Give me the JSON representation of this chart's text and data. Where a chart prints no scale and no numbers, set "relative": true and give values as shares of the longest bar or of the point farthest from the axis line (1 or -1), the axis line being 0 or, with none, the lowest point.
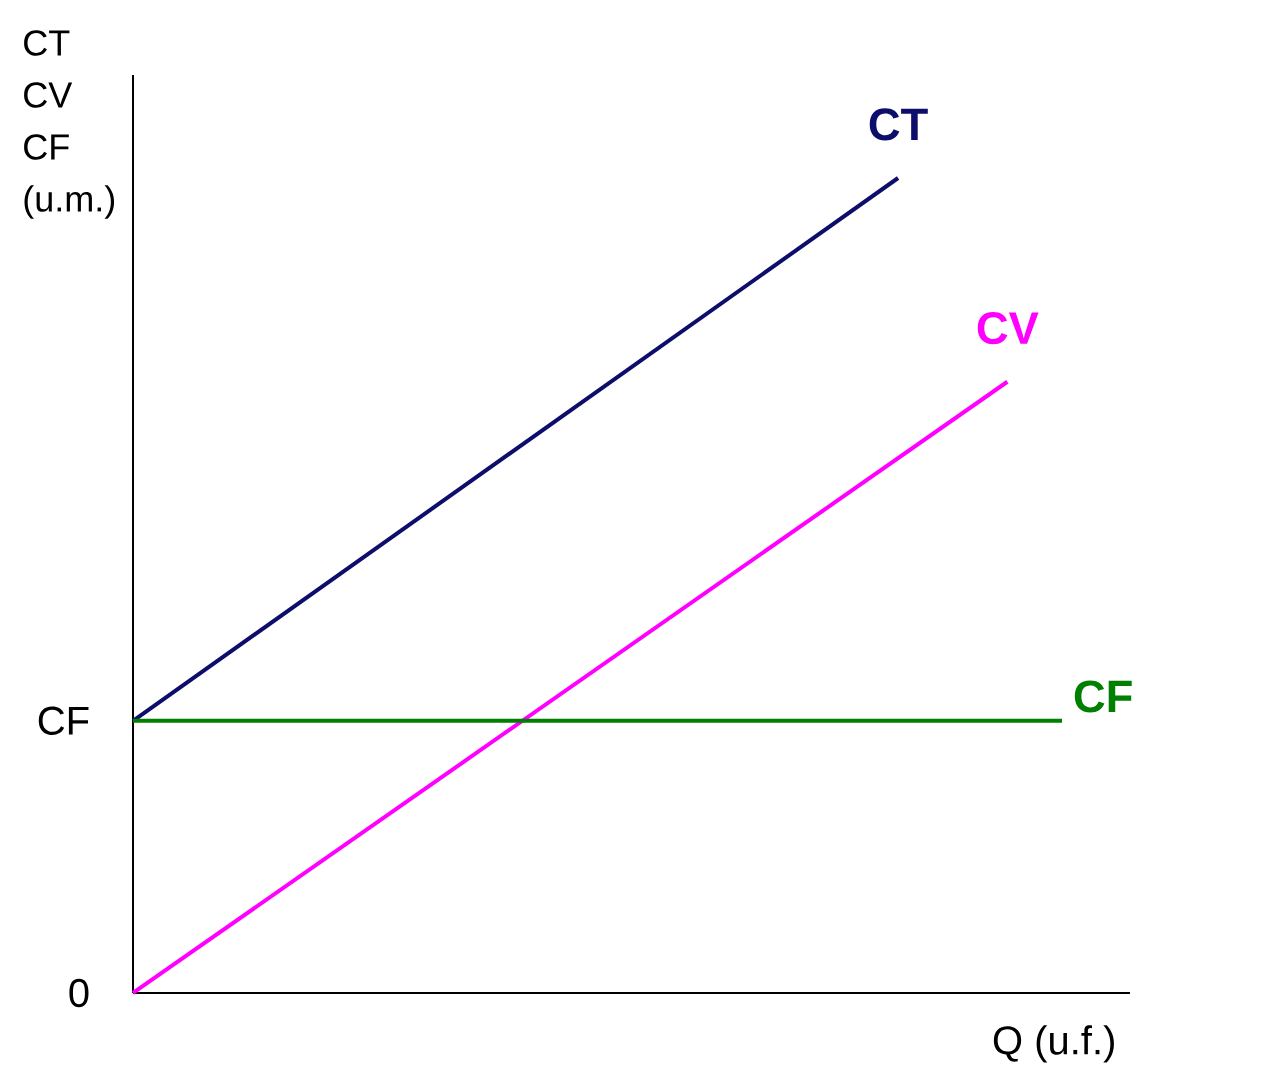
{
  "chart_data": {
    "type": "line",
    "relative": true,
    "ylabel": "CT CV CF (u.m.)",
    "xlabel": "Q (u.f.)",
    "categories": [
      null,
      null,
      null,
      null,
      null,
      null,
      null,
      null,
      null,
      null,
      null,
      null,
      null,
      null,
      null,
      null,
      null,
      null
    ],
    "series": [
      {
        "name": "CT",
        "color": "#0d0d6b",
        "values": [
          0.334,
          null,
          null,
          null,
          null,
          null,
          null,
          null,
          null,
          null,
          null,
          null,
          null,
          null,
          1.0,
          null,
          null,
          null
        ]
      },
      {
        "name": "CV",
        "color": "#ff00ff",
        "values": [
          0.0,
          null,
          null,
          null,
          null,
          null,
          null,
          null,
          null,
          null,
          null,
          null,
          null,
          null,
          null,
          null,
          0.75,
          null
        ]
      },
      {
        "name": "CF",
        "color": "#007f00",
        "values": [
          0.334,
          null,
          null,
          null,
          null,
          null,
          null,
          null,
          null,
          null,
          null,
          null,
          null,
          null,
          null,
          null,
          null,
          0.334
        ]
      }
    ],
    "annotations": [
      "0",
      "CF"
    ]
  }
}
